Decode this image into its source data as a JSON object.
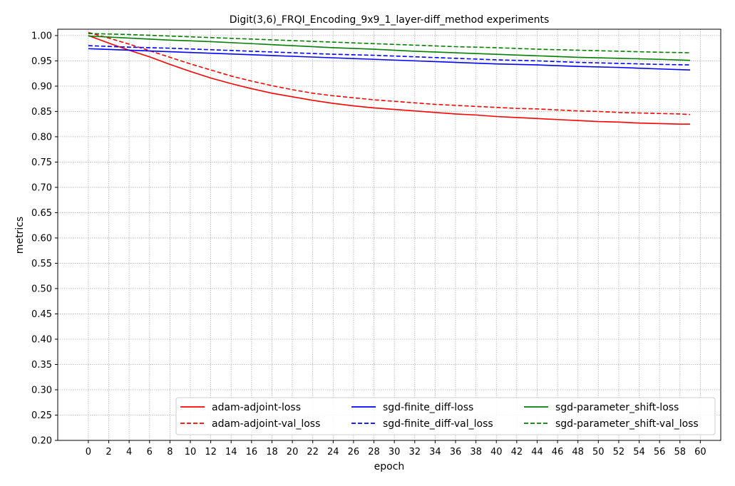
{
  "chart_data": {
    "type": "line",
    "title": "Digit(3,6)_FRQI_Encoding_9x9_1_layer-diff_method experiments",
    "xlabel": "epoch",
    "ylabel": "metrics",
    "xlim": [
      -3,
      62
    ],
    "ylim": [
      0.2,
      1.0125
    ],
    "xticks": [
      0,
      2,
      4,
      6,
      8,
      10,
      12,
      14,
      16,
      18,
      20,
      22,
      24,
      26,
      28,
      30,
      32,
      34,
      36,
      38,
      40,
      42,
      44,
      46,
      48,
      50,
      52,
      54,
      56,
      58,
      60
    ],
    "yticks": [
      0.2,
      0.25,
      0.3,
      0.35,
      0.4,
      0.45,
      0.5,
      0.55,
      0.6,
      0.65,
      0.7,
      0.75,
      0.8,
      0.85,
      0.9,
      0.95,
      1.0
    ],
    "grid": true,
    "legend_position": "lower-right",
    "legend_columns": 3,
    "series": [
      {
        "name": "adam-adjoint-loss",
        "color": "#ff0000",
        "dash": "solid",
        "x": [
          0,
          2,
          4,
          6,
          8,
          10,
          12,
          14,
          16,
          18,
          20,
          22,
          24,
          26,
          28,
          30,
          32,
          34,
          36,
          38,
          40,
          42,
          44,
          46,
          48,
          50,
          52,
          54,
          56,
          58,
          59
        ],
        "y": [
          1.0,
          0.985,
          0.971,
          0.958,
          0.943,
          0.929,
          0.916,
          0.905,
          0.895,
          0.886,
          0.879,
          0.872,
          0.866,
          0.861,
          0.857,
          0.854,
          0.851,
          0.848,
          0.845,
          0.843,
          0.84,
          0.838,
          0.836,
          0.834,
          0.832,
          0.83,
          0.829,
          0.827,
          0.826,
          0.825,
          0.825
        ]
      },
      {
        "name": "adam-adjoint-val_loss",
        "color": "#ff0000",
        "dash": "dashed",
        "x": [
          0,
          2,
          4,
          6,
          8,
          10,
          12,
          14,
          16,
          18,
          20,
          22,
          24,
          26,
          28,
          30,
          32,
          34,
          36,
          38,
          40,
          42,
          44,
          46,
          48,
          50,
          52,
          54,
          56,
          58,
          59
        ],
        "y": [
          1.006,
          0.995,
          0.983,
          0.97,
          0.957,
          0.944,
          0.932,
          0.92,
          0.91,
          0.901,
          0.893,
          0.886,
          0.881,
          0.877,
          0.873,
          0.87,
          0.867,
          0.864,
          0.862,
          0.86,
          0.858,
          0.856,
          0.855,
          0.853,
          0.851,
          0.85,
          0.848,
          0.847,
          0.846,
          0.845,
          0.844
        ]
      },
      {
        "name": "sgd-finite_diff-loss",
        "color": "#0000ff",
        "dash": "solid",
        "x": [
          0,
          4,
          8,
          12,
          16,
          20,
          24,
          28,
          32,
          36,
          40,
          44,
          48,
          52,
          56,
          59
        ],
        "y": [
          0.974,
          0.971,
          0.968,
          0.965,
          0.962,
          0.959,
          0.956,
          0.953,
          0.95,
          0.947,
          0.944,
          0.942,
          0.939,
          0.937,
          0.934,
          0.932
        ]
      },
      {
        "name": "sgd-finite_diff-val_loss",
        "color": "#0000ff",
        "dash": "dashed",
        "x": [
          0,
          4,
          8,
          12,
          16,
          20,
          24,
          28,
          32,
          36,
          40,
          44,
          48,
          52,
          56,
          59
        ],
        "y": [
          0.98,
          0.977,
          0.975,
          0.972,
          0.969,
          0.966,
          0.963,
          0.961,
          0.958,
          0.955,
          0.952,
          0.95,
          0.947,
          0.945,
          0.943,
          0.942
        ]
      },
      {
        "name": "sgd-parameter_shift-loss",
        "color": "#008000",
        "dash": "solid",
        "x": [
          0,
          4,
          8,
          12,
          16,
          20,
          24,
          28,
          32,
          36,
          40,
          44,
          48,
          52,
          56,
          59
        ],
        "y": [
          0.999,
          0.995,
          0.991,
          0.988,
          0.984,
          0.98,
          0.976,
          0.973,
          0.969,
          0.966,
          0.963,
          0.96,
          0.957,
          0.955,
          0.953,
          0.951
        ]
      },
      {
        "name": "sgd-parameter_shift-val_loss",
        "color": "#008000",
        "dash": "dashed",
        "x": [
          0,
          4,
          8,
          12,
          16,
          20,
          24,
          28,
          32,
          36,
          40,
          44,
          48,
          52,
          56,
          59
        ],
        "y": [
          1.004,
          1.002,
          0.999,
          0.996,
          0.993,
          0.99,
          0.987,
          0.984,
          0.981,
          0.978,
          0.976,
          0.973,
          0.971,
          0.969,
          0.967,
          0.966
        ]
      }
    ]
  }
}
